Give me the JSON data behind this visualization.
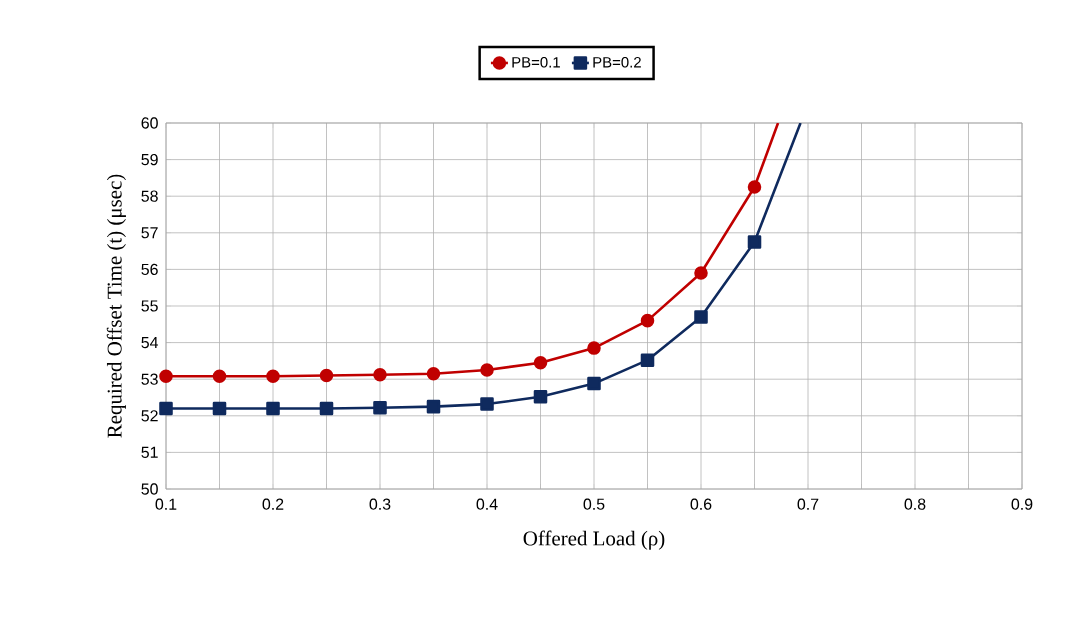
{
  "chart_data": {
    "type": "line",
    "xlabel": "Offered Load (ρ)",
    "ylabel": "Required Offset Time  (t)  (μsec)",
    "series": [
      {
        "name": "PB=0.1",
        "color": "#c00000",
        "marker": "circle",
        "x": [
          0.1,
          0.15,
          0.2,
          0.25,
          0.3,
          0.35,
          0.4,
          0.45,
          0.5,
          0.55,
          0.6,
          0.65,
          0.672
        ],
        "values": [
          53.08,
          53.08,
          53.08,
          53.1,
          53.12,
          53.15,
          53.25,
          53.45,
          53.85,
          54.6,
          55.9,
          58.25,
          60
        ]
      },
      {
        "name": "PB=0.2",
        "color": "#0f2a5e",
        "marker": "square",
        "x": [
          0.1,
          0.15,
          0.2,
          0.25,
          0.3,
          0.35,
          0.4,
          0.45,
          0.5,
          0.55,
          0.6,
          0.65,
          0.693
        ],
        "values": [
          52.2,
          52.2,
          52.2,
          52.2,
          52.22,
          52.25,
          52.32,
          52.52,
          52.88,
          53.52,
          54.7,
          56.75,
          60
        ]
      }
    ],
    "xlim": [
      0.1,
      0.9
    ],
    "ylim": [
      50,
      60
    ],
    "xticks": [
      0.1,
      {
        "value": 0.15,
        "label": null
      },
      0.2,
      {
        "value": 0.25,
        "label": null
      },
      0.3,
      {
        "value": 0.35,
        "label": null
      },
      0.4,
      {
        "value": 0.45,
        "label": null
      },
      0.5,
      {
        "value": 0.55,
        "label": null
      },
      0.6,
      {
        "value": 0.65,
        "label": null
      },
      0.7,
      {
        "value": 0.75,
        "label": null
      },
      0.8,
      {
        "value": 0.85,
        "label": null
      },
      0.9
    ],
    "yticks": [
      50,
      51,
      52,
      53,
      54,
      55,
      56,
      57,
      58,
      59,
      60
    ],
    "grid": true,
    "legend": "top",
    "line_style": "solid"
  }
}
